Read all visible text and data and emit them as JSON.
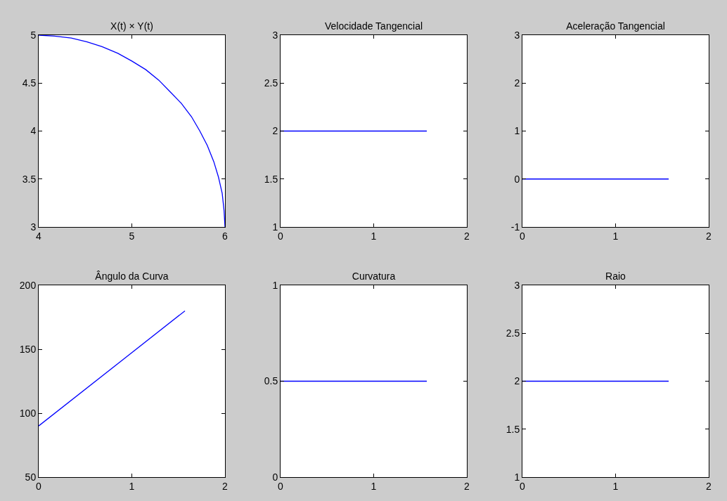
{
  "chart_data": [
    {
      "type": "line",
      "title": "X(t) × Y(t)",
      "x": [
        4,
        4.17,
        4.35,
        4.52,
        4.68,
        4.85,
        5,
        5.15,
        5.29,
        5.41,
        5.53,
        5.64,
        5.73,
        5.81,
        5.88,
        5.93,
        5.97,
        5.99,
        6
      ],
      "series": [
        {
          "color": "#0000ff",
          "values": [
            5,
            4.99,
            4.97,
            4.93,
            4.88,
            4.81,
            4.73,
            4.64,
            4.53,
            4.41,
            4.29,
            4.15,
            4,
            3.85,
            3.68,
            3.52,
            3.35,
            3.17,
            3
          ]
        }
      ],
      "xlim": [
        4,
        6
      ],
      "xticks": [
        4,
        5,
        6
      ],
      "ylim": [
        3,
        5
      ],
      "yticks": [
        3,
        3.5,
        4,
        4.5,
        5
      ]
    },
    {
      "type": "line",
      "title": "Velocidade Tangencial",
      "x": [
        0,
        1.57
      ],
      "series": [
        {
          "color": "#0000ff",
          "values": [
            2,
            2
          ]
        }
      ],
      "xlim": [
        0,
        2
      ],
      "xticks": [
        0,
        1,
        2
      ],
      "ylim": [
        1,
        3
      ],
      "yticks": [
        1,
        1.5,
        2,
        2.5,
        3
      ]
    },
    {
      "type": "line",
      "title": "Aceleração Tangencial",
      "x": [
        0,
        1.57
      ],
      "series": [
        {
          "color": "#0000ff",
          "values": [
            0,
            0
          ]
        }
      ],
      "xlim": [
        0,
        2
      ],
      "xticks": [
        0,
        1,
        2
      ],
      "ylim": [
        -1,
        3
      ],
      "yticks": [
        -1,
        0,
        1,
        2,
        3
      ]
    },
    {
      "type": "line",
      "title": "Ângulo da Curva",
      "x": [
        0,
        1.57
      ],
      "series": [
        {
          "color": "#0000ff",
          "values": [
            90,
            180
          ]
        }
      ],
      "xlim": [
        0,
        2
      ],
      "xticks": [
        0,
        1,
        2
      ],
      "ylim": [
        50,
        200
      ],
      "yticks": [
        50,
        100,
        150,
        200
      ]
    },
    {
      "type": "line",
      "title": "Curvatura",
      "x": [
        0,
        1.57
      ],
      "series": [
        {
          "color": "#0000ff",
          "values": [
            0.5,
            0.5
          ]
        }
      ],
      "xlim": [
        0,
        2
      ],
      "xticks": [
        0,
        1,
        2
      ],
      "ylim": [
        0,
        1
      ],
      "yticks": [
        0,
        0.5,
        1
      ]
    },
    {
      "type": "line",
      "title": "Raio",
      "x": [
        0,
        1.57
      ],
      "series": [
        {
          "color": "#0000ff",
          "values": [
            2,
            2
          ]
        }
      ],
      "xlim": [
        0,
        2
      ],
      "xticks": [
        0,
        1,
        2
      ],
      "ylim": [
        1,
        3
      ],
      "yticks": [
        1,
        1.5,
        2,
        2.5,
        3
      ]
    }
  ]
}
